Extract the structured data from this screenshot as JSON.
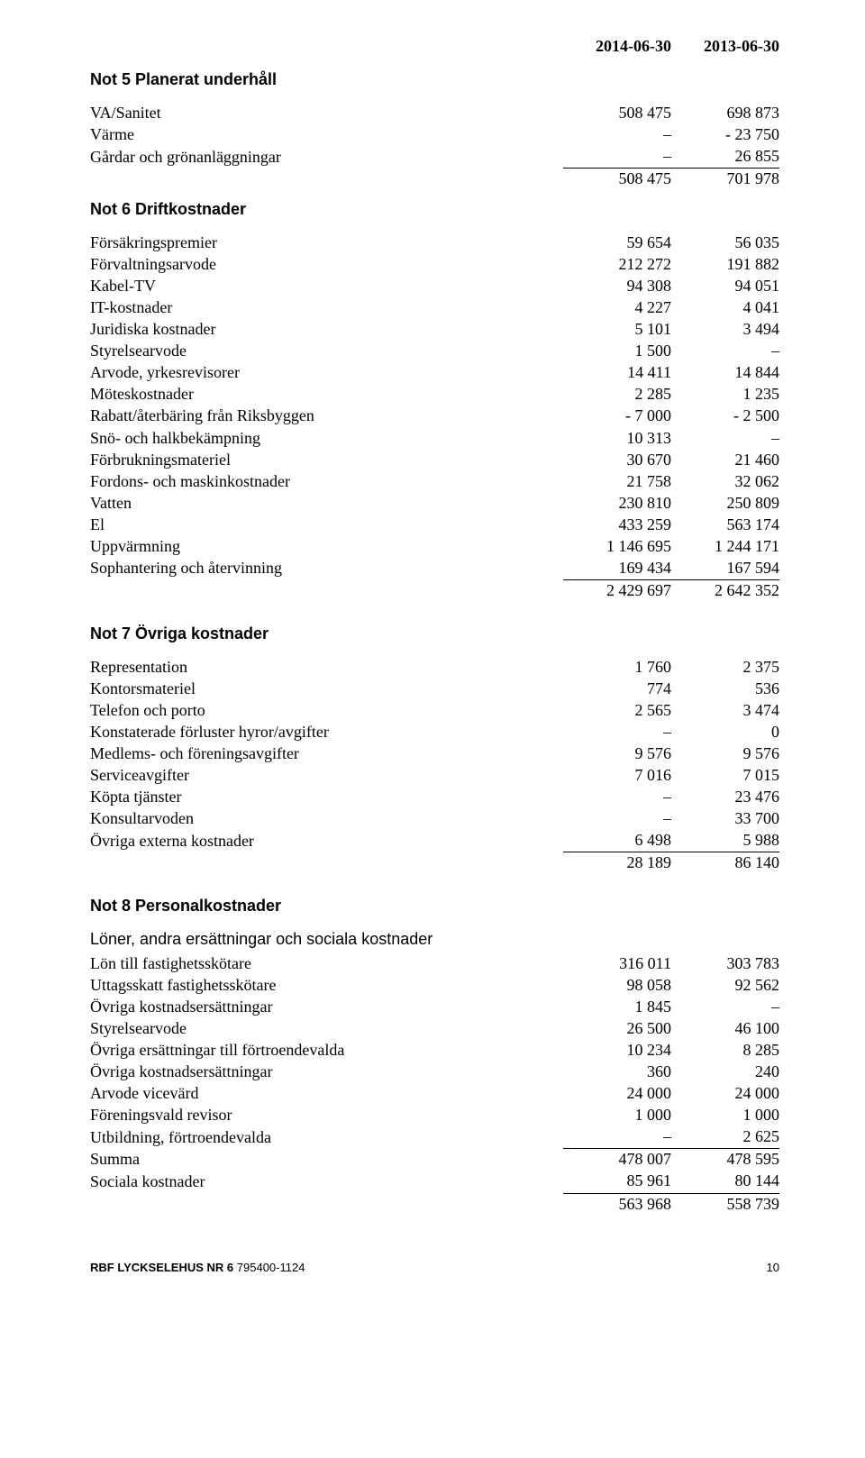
{
  "header": {
    "date_current": "2014-06-30",
    "date_prior": "2013-06-30"
  },
  "not5": {
    "title": "Not 5   Planerat underhåll",
    "rows": [
      {
        "label": "VA/Sanitet",
        "c": "508 475",
        "p": "698 873"
      },
      {
        "label": "Värme",
        "c": "–",
        "p": "- 23 750"
      },
      {
        "label": "Gårdar och grönanläggningar",
        "c": "–",
        "p": "26 855"
      }
    ],
    "total": {
      "c": "508 475",
      "p": "701 978"
    }
  },
  "not6": {
    "title": "Not 6   Driftkostnader",
    "rows": [
      {
        "label": "Försäkringspremier",
        "c": "59 654",
        "p": "56 035"
      },
      {
        "label": "Förvaltningsarvode",
        "c": "212 272",
        "p": "191 882"
      },
      {
        "label": "Kabel-TV",
        "c": "94 308",
        "p": "94 051"
      },
      {
        "label": "IT-kostnader",
        "c": "4 227",
        "p": "4 041"
      },
      {
        "label": "Juridiska kostnader",
        "c": "5 101",
        "p": "3 494"
      },
      {
        "label": "Styrelsearvode",
        "c": "1 500",
        "p": "–"
      },
      {
        "label": "Arvode, yrkesrevisorer",
        "c": "14 411",
        "p": "14 844"
      },
      {
        "label": "Möteskostnader",
        "c": "2 285",
        "p": "1 235"
      },
      {
        "label": "Rabatt/återbäring från Riksbyggen",
        "c": "- 7 000",
        "p": "- 2 500"
      },
      {
        "label": "Snö- och halkbekämpning",
        "c": "10 313",
        "p": "–"
      },
      {
        "label": "Förbrukningsmateriel",
        "c": "30 670",
        "p": "21 460"
      },
      {
        "label": "Fordons- och maskinkostnader",
        "c": "21 758",
        "p": "32 062"
      },
      {
        "label": "Vatten",
        "c": "230 810",
        "p": "250 809"
      },
      {
        "label": "El",
        "c": "433 259",
        "p": "563 174"
      },
      {
        "label": "Uppvärmning",
        "c": "1 146 695",
        "p": "1 244 171"
      },
      {
        "label": "Sophantering och återvinning",
        "c": "169 434",
        "p": "167 594"
      }
    ],
    "total": {
      "c": "2 429 697",
      "p": "2 642 352"
    }
  },
  "not7": {
    "title": "Not 7   Övriga kostnader",
    "rows": [
      {
        "label": "Representation",
        "c": "1 760",
        "p": "2 375"
      },
      {
        "label": "Kontorsmateriel",
        "c": "774",
        "p": "536"
      },
      {
        "label": "Telefon och porto",
        "c": "2 565",
        "p": "3 474"
      },
      {
        "label": "Konstaterade förluster hyror/avgifter",
        "c": "–",
        "p": "0"
      },
      {
        "label": "Medlems- och föreningsavgifter",
        "c": "9 576",
        "p": "9 576"
      },
      {
        "label": "Serviceavgifter",
        "c": "7 016",
        "p": "7 015"
      },
      {
        "label": "Köpta tjänster",
        "c": "–",
        "p": "23 476"
      },
      {
        "label": "Konsultarvoden",
        "c": "–",
        "p": "33 700"
      },
      {
        "label": "Övriga externa kostnader",
        "c": "6 498",
        "p": "5 988"
      }
    ],
    "total": {
      "c": "28 189",
      "p": "86 140"
    }
  },
  "not8": {
    "title": "Not 8   Personalkostnader",
    "subtitle": "Löner, andra ersättningar och sociala kostnader",
    "rows": [
      {
        "label": "Lön till fastighetsskötare",
        "c": "316 011",
        "p": "303 783"
      },
      {
        "label": "Uttagsskatt fastighetsskötare",
        "c": "98 058",
        "p": "92 562"
      },
      {
        "label": "Övriga kostnadsersättningar",
        "c": "1 845",
        "p": "–"
      },
      {
        "label": "Styrelsearvode",
        "c": "26 500",
        "p": "46 100"
      },
      {
        "label": "Övriga ersättningar till förtroendevalda",
        "c": "10 234",
        "p": "8 285"
      },
      {
        "label": "Övriga kostnadsersättningar",
        "c": "360",
        "p": "240"
      },
      {
        "label": "Arvode vicevärd",
        "c": "24 000",
        "p": "24 000"
      },
      {
        "label": "Föreningsvald revisor",
        "c": "1 000",
        "p": "1 000"
      },
      {
        "label": "Utbildning, förtroendevalda",
        "c": "–",
        "p": "2 625"
      }
    ],
    "summa": {
      "label": "Summa",
      "c": "478 007",
      "p": "478 595"
    },
    "sociala": {
      "label": "Sociala kostnader",
      "c": "85 961",
      "p": "80 144"
    },
    "total": {
      "c": "563 968",
      "p": "558 739"
    }
  },
  "footer": {
    "company": "RBF LYCKSELEHUS NR 6",
    "orgnr": "795400-1124",
    "page": "10"
  }
}
